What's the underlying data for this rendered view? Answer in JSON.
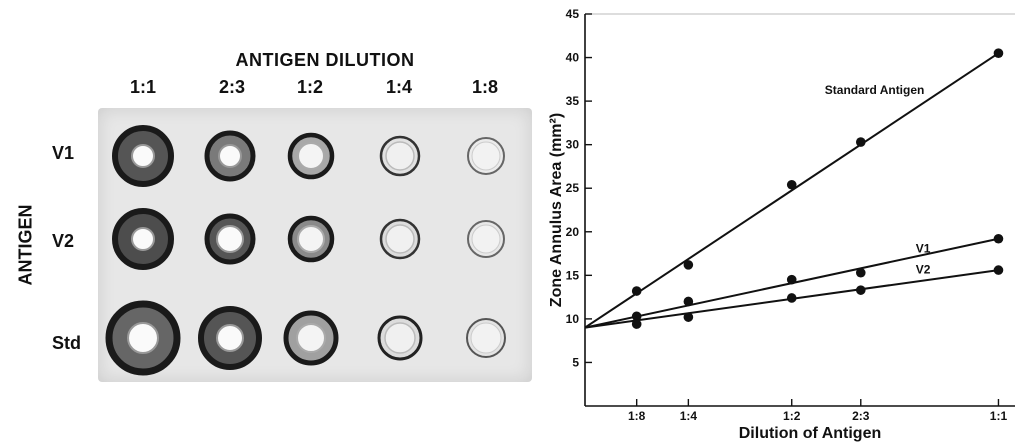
{
  "plate": {
    "title": "ANTIGEN DILUTION",
    "row_axis_label": "ANTIGEN",
    "column_labels": [
      "1:1",
      "2:3",
      "1:2",
      "1:4",
      "1:8"
    ],
    "row_labels": [
      "V1",
      "V2",
      "Std"
    ]
  },
  "chart_data": {
    "type": "scatter",
    "title": "",
    "xlabel": "Dilution of Antigen",
    "ylabel": "Zone Annulus Area (mm²)",
    "x_categories": [
      "1:8",
      "1:4",
      "1:2",
      "2:3",
      "1:1"
    ],
    "x_fraction": [
      0.125,
      0.25,
      0.5,
      0.667,
      1.0
    ],
    "ylim": [
      0,
      45
    ],
    "yticks": [
      5,
      10,
      15,
      20,
      25,
      30,
      35,
      40,
      45
    ],
    "grid": false,
    "series": [
      {
        "name": "Standard Antigen",
        "fit": [
          9.0,
          40.5
        ],
        "points": [
          [
            0.125,
            13.2
          ],
          [
            0.25,
            16.2
          ],
          [
            0.5,
            25.4
          ],
          [
            0.667,
            30.3
          ],
          [
            1.0,
            40.5
          ]
        ]
      },
      {
        "name": "V1",
        "fit": [
          9.0,
          19.2
        ],
        "points": [
          [
            0.125,
            10.3
          ],
          [
            0.25,
            12.0
          ],
          [
            0.5,
            14.5
          ],
          [
            0.667,
            15.3
          ],
          [
            1.0,
            19.2
          ]
        ]
      },
      {
        "name": "V2",
        "fit": [
          9.0,
          15.6
        ],
        "points": [
          [
            0.125,
            9.4
          ],
          [
            0.25,
            10.2
          ],
          [
            0.5,
            12.4
          ],
          [
            0.667,
            13.3
          ],
          [
            1.0,
            15.6
          ]
        ]
      }
    ]
  }
}
